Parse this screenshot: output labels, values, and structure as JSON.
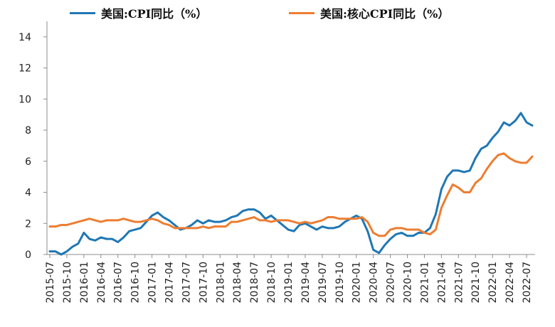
{
  "chart_data": {
    "type": "line",
    "title": "",
    "xlabel": "",
    "ylabel": "",
    "ylim": [
      0,
      15
    ],
    "yticks": [
      0,
      2,
      4,
      6,
      8,
      10,
      12,
      14
    ],
    "grid": false,
    "legend_position": "top",
    "xtick_labels": [
      "2015-07",
      "2015-10",
      "2016-01",
      "2016-04",
      "2016-07",
      "2016-10",
      "2017-01",
      "2017-04",
      "2017-07",
      "2017-10",
      "2018-01",
      "2018-04",
      "2018-07",
      "2018-10",
      "2019-01",
      "2019-04",
      "2019-07",
      "2019-10",
      "2020-01",
      "2020-04",
      "2020-07",
      "2020-10",
      "2021-01",
      "2021-04",
      "2021-07",
      "2021-10",
      "2022-01",
      "2022-04",
      "2022-07"
    ],
    "x": [
      "2015-07",
      "2015-08",
      "2015-09",
      "2015-10",
      "2015-11",
      "2015-12",
      "2016-01",
      "2016-02",
      "2016-03",
      "2016-04",
      "2016-05",
      "2016-06",
      "2016-07",
      "2016-08",
      "2016-09",
      "2016-10",
      "2016-11",
      "2016-12",
      "2017-01",
      "2017-02",
      "2017-03",
      "2017-04",
      "2017-05",
      "2017-06",
      "2017-07",
      "2017-08",
      "2017-09",
      "2017-10",
      "2017-11",
      "2017-12",
      "2018-01",
      "2018-02",
      "2018-03",
      "2018-04",
      "2018-05",
      "2018-06",
      "2018-07",
      "2018-08",
      "2018-09",
      "2018-10",
      "2018-11",
      "2018-12",
      "2019-01",
      "2019-02",
      "2019-03",
      "2019-04",
      "2019-05",
      "2019-06",
      "2019-07",
      "2019-08",
      "2019-09",
      "2019-10",
      "2019-11",
      "2019-12",
      "2020-01",
      "2020-02",
      "2020-03",
      "2020-04",
      "2020-05",
      "2020-06",
      "2020-07",
      "2020-08",
      "2020-09",
      "2020-10",
      "2020-11",
      "2020-12",
      "2021-01",
      "2021-02",
      "2021-03",
      "2021-04",
      "2021-05",
      "2021-06",
      "2021-07",
      "2021-08",
      "2021-09",
      "2021-10",
      "2021-11",
      "2021-12",
      "2022-01",
      "2022-02",
      "2022-03",
      "2022-04",
      "2022-05",
      "2022-06",
      "2022-07",
      "2022-08"
    ],
    "series": [
      {
        "name": "美国:CPI同比（%）",
        "color": "#1f77b4",
        "values": [
          0.2,
          0.2,
          0.0,
          0.2,
          0.5,
          0.7,
          1.4,
          1.0,
          0.9,
          1.1,
          1.0,
          1.0,
          0.8,
          1.1,
          1.5,
          1.6,
          1.7,
          2.1,
          2.5,
          2.7,
          2.4,
          2.2,
          1.9,
          1.6,
          1.7,
          1.9,
          2.2,
          2.0,
          2.2,
          2.1,
          2.1,
          2.2,
          2.4,
          2.5,
          2.8,
          2.9,
          2.9,
          2.7,
          2.3,
          2.5,
          2.2,
          1.9,
          1.6,
          1.5,
          1.9,
          2.0,
          1.8,
          1.6,
          1.8,
          1.7,
          1.7,
          1.8,
          2.1,
          2.3,
          2.5,
          2.3,
          1.5,
          0.3,
          0.1,
          0.6,
          1.0,
          1.3,
          1.4,
          1.2,
          1.2,
          1.4,
          1.4,
          1.7,
          2.6,
          4.2,
          5.0,
          5.4,
          5.4,
          5.3,
          5.4,
          6.2,
          6.8,
          7.0,
          7.5,
          7.9,
          8.5,
          8.3,
          8.6,
          9.1,
          8.5,
          8.3
        ]
      },
      {
        "name": "美国:核心CPI同比（%）",
        "color": "#ed7d31",
        "values": [
          1.8,
          1.8,
          1.9,
          1.9,
          2.0,
          2.1,
          2.2,
          2.3,
          2.2,
          2.1,
          2.2,
          2.2,
          2.2,
          2.3,
          2.2,
          2.1,
          2.1,
          2.2,
          2.3,
          2.2,
          2.0,
          1.9,
          1.7,
          1.7,
          1.7,
          1.7,
          1.7,
          1.8,
          1.7,
          1.8,
          1.8,
          1.8,
          2.1,
          2.1,
          2.2,
          2.3,
          2.4,
          2.2,
          2.2,
          2.1,
          2.2,
          2.2,
          2.2,
          2.1,
          2.0,
          2.1,
          2.0,
          2.1,
          2.2,
          2.4,
          2.4,
          2.3,
          2.3,
          2.3,
          2.3,
          2.4,
          2.1,
          1.4,
          1.2,
          1.2,
          1.6,
          1.7,
          1.7,
          1.6,
          1.6,
          1.6,
          1.4,
          1.3,
          1.6,
          3.0,
          3.8,
          4.5,
          4.3,
          4.0,
          4.0,
          4.6,
          4.9,
          5.5,
          6.0,
          6.4,
          6.5,
          6.2,
          6.0,
          5.9,
          5.9,
          6.3
        ]
      }
    ]
  }
}
